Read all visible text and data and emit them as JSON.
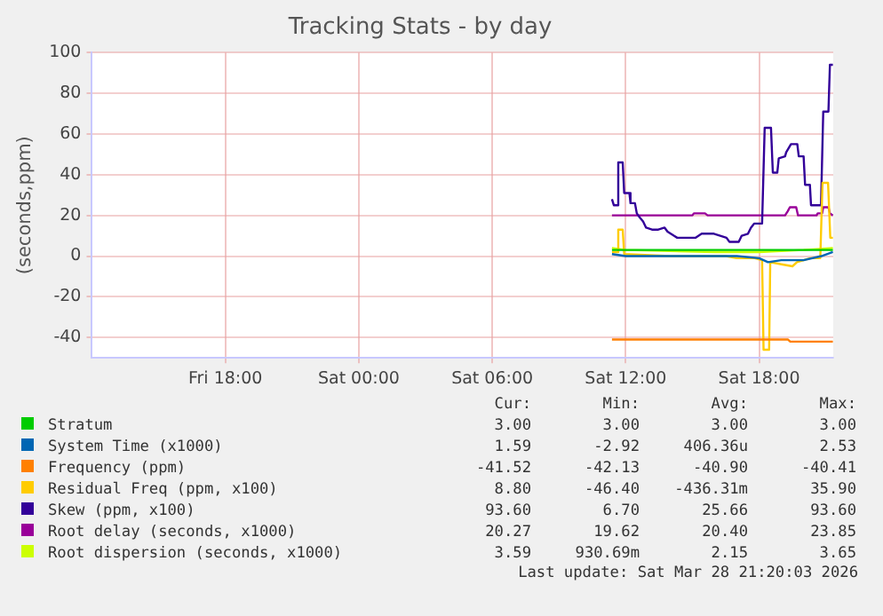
{
  "chart_data": {
    "type": "line",
    "title": "Tracking Stats - by day",
    "ylabel": "(seconds,ppm)",
    "xlim": [
      "2026-03-27T12:00",
      "2026-03-28T21:20"
    ],
    "xticks": [
      {
        "value": "2026-03-27T18:00",
        "label": "Fri 18:00"
      },
      {
        "value": "2026-03-28T00:00",
        "label": "Sat 00:00"
      },
      {
        "value": "2026-03-28T06:00",
        "label": "Sat 06:00"
      },
      {
        "value": "2026-03-28T12:00",
        "label": "Sat 12:00"
      },
      {
        "value": "2026-03-28T18:00",
        "label": "Sat 18:00"
      }
    ],
    "ylim": [
      -50,
      100
    ],
    "yticks": [
      -40,
      -20,
      0,
      20,
      40,
      60,
      80,
      100
    ],
    "grid": true,
    "legend": "bottom",
    "marker": "none",
    "line_style": "solid",
    "series": [
      {
        "name": "Stratum",
        "color": "#00cc00",
        "x": [
          "2026-03-28T11:23",
          "2026-03-28T21:19"
        ],
        "values": [
          3,
          3
        ]
      },
      {
        "name": "System Time (x1000)",
        "color": "#0066b3",
        "x": [
          "2026-03-28T11:23",
          "2026-03-28T12:00",
          "2026-03-28T17:00",
          "2026-03-28T18:00",
          "2026-03-28T18:24",
          "2026-03-28T19:00",
          "2026-03-28T20:00",
          "2026-03-28T20:48",
          "2026-03-28T21:19"
        ],
        "values": [
          1,
          0,
          0,
          -1,
          -3,
          -2,
          -2,
          0,
          2
        ]
      },
      {
        "name": "Frequency (ppm)",
        "color": "#ff8000",
        "x": [
          "2026-03-28T11:23",
          "2026-03-28T18:18",
          "2026-03-28T18:24",
          "2026-03-28T19:18",
          "2026-03-28T19:24",
          "2026-03-28T20:48",
          "2026-03-28T20:54",
          "2026-03-28T21:19"
        ],
        "values": [
          -41,
          -41,
          -41,
          -41,
          -42,
          -42,
          -42,
          -42
        ]
      },
      {
        "name": "Residual Freq (ppm, x100)",
        "color": "#ffcc00",
        "x": [
          "2026-03-28T11:23",
          "2026-03-28T11:36",
          "2026-03-28T11:40",
          "2026-03-28T11:52",
          "2026-03-28T11:56",
          "2026-03-28T14:00",
          "2026-03-28T16:30",
          "2026-03-28T17:00",
          "2026-03-28T17:48",
          "2026-03-28T18:08",
          "2026-03-28T18:12",
          "2026-03-28T18:27",
          "2026-03-28T18:30",
          "2026-03-28T19:00",
          "2026-03-28T19:30",
          "2026-03-28T19:42",
          "2026-03-28T20:18",
          "2026-03-28T20:45",
          "2026-03-28T20:51",
          "2026-03-28T21:06",
          "2026-03-28T21:12",
          "2026-03-28T21:19"
        ],
        "values": [
          2,
          2,
          13,
          13,
          1,
          0,
          0,
          -1,
          -1,
          -2,
          -46,
          -46,
          -3,
          -4,
          -5,
          -3,
          -1,
          -1,
          36,
          36,
          9,
          9
        ]
      },
      {
        "name": "Skew (ppm, x100)",
        "color": "#330099",
        "x": [
          "2026-03-28T11:23",
          "2026-03-28T11:28",
          "2026-03-28T11:37",
          "2026-03-28T11:40",
          "2026-03-28T11:52",
          "2026-03-28T11:56",
          "2026-03-28T12:10",
          "2026-03-28T12:13",
          "2026-03-28T12:25",
          "2026-03-28T12:30",
          "2026-03-28T12:38",
          "2026-03-28T12:47",
          "2026-03-28T12:55",
          "2026-03-28T13:11",
          "2026-03-28T13:28",
          "2026-03-28T13:45",
          "2026-03-28T13:53",
          "2026-03-28T14:10",
          "2026-03-28T14:19",
          "2026-03-28T14:43",
          "2026-03-28T14:52",
          "2026-03-28T15:08",
          "2026-03-28T15:25",
          "2026-03-28T15:50",
          "2026-03-28T15:58",
          "2026-03-28T16:15",
          "2026-03-28T16:32",
          "2026-03-28T16:40",
          "2026-03-28T17:05",
          "2026-03-28T17:13",
          "2026-03-28T17:30",
          "2026-03-28T17:38",
          "2026-03-28T17:47",
          "2026-03-28T18:08",
          "2026-03-28T18:15",
          "2026-03-28T18:32",
          "2026-03-28T18:37",
          "2026-03-28T18:49",
          "2026-03-28T18:53",
          "2026-03-28T19:10",
          "2026-03-28T19:13",
          "2026-03-28T19:26",
          "2026-03-28T19:43",
          "2026-03-28T19:47",
          "2026-03-28T20:00",
          "2026-03-28T20:04",
          "2026-03-28T20:17",
          "2026-03-28T20:20",
          "2026-03-28T20:47",
          "2026-03-28T20:53",
          "2026-03-28T21:07",
          "2026-03-28T21:11",
          "2026-03-28T21:19"
        ],
        "values": [
          28,
          25,
          25,
          46,
          46,
          31,
          31,
          26,
          26,
          21,
          19,
          17,
          14,
          13,
          13,
          14,
          12,
          10,
          9,
          9,
          9,
          9,
          11,
          11,
          11,
          10,
          9,
          7,
          7,
          10,
          11,
          14,
          16,
          16,
          63,
          63,
          41,
          41,
          48,
          49,
          51,
          55,
          55,
          49,
          49,
          35,
          35,
          25,
          25,
          71,
          71,
          94,
          94
        ]
      },
      {
        "name": "Root delay (seconds, x1000)",
        "color": "#990099",
        "x": [
          "2026-03-28T11:23",
          "2026-03-28T15:00",
          "2026-03-28T15:04",
          "2026-03-28T15:34",
          "2026-03-28T15:41",
          "2026-03-28T17:00",
          "2026-03-28T17:07",
          "2026-03-28T19:10",
          "2026-03-28T19:17",
          "2026-03-28T19:23",
          "2026-03-28T19:40",
          "2026-03-28T19:45",
          "2026-03-28T20:35",
          "2026-03-28T20:38",
          "2026-03-28T20:50",
          "2026-03-28T20:53",
          "2026-03-28T21:07",
          "2026-03-28T21:11",
          "2026-03-28T21:19"
        ],
        "values": [
          20,
          20,
          21,
          21,
          20,
          20,
          20,
          20,
          22,
          24,
          24,
          20,
          20,
          21,
          21,
          24,
          24,
          21,
          20
        ]
      },
      {
        "name": "Root dispersion (seconds, x1000)",
        "color": "#ccff00",
        "x": [
          "2026-03-28T11:23",
          "2026-03-28T12:00",
          "2026-03-28T16:00",
          "2026-03-28T18:00",
          "2026-03-28T20:00",
          "2026-03-28T21:19"
        ],
        "values": [
          4,
          3,
          2,
          2,
          3,
          4
        ]
      }
    ],
    "annotations": [
      "Cur:",
      "Min:",
      "Avg:",
      "Max:",
      "3.00",
      "3.00",
      "3.00",
      "3.00",
      "1.59",
      "-2.92",
      "406.36u",
      "2.53",
      "-41.52",
      "-42.13",
      "-40.90",
      "-40.41",
      "8.80",
      "-46.40",
      "-436.31m",
      "35.90",
      "93.60",
      "6.70",
      "25.66",
      "93.60",
      "20.27",
      "19.62",
      "20.40",
      "23.85",
      "3.59",
      "930.69m",
      "2.15",
      "3.65",
      "Last update: Sat Mar 28 21:20:03 2026"
    ]
  }
}
